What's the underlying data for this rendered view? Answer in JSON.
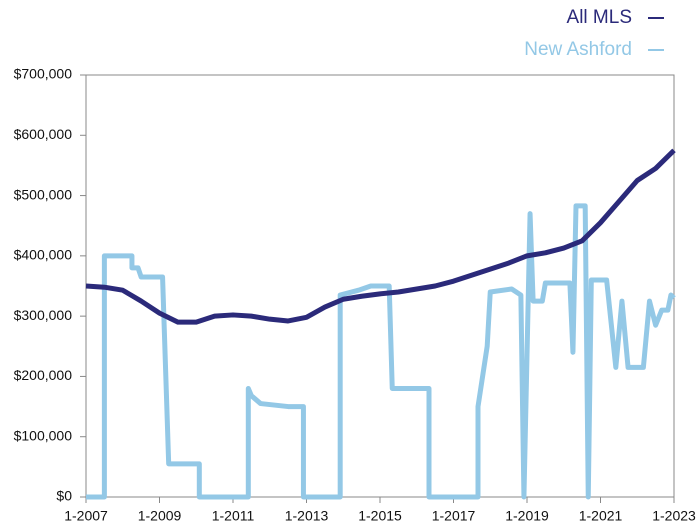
{
  "chart_data": {
    "type": "line",
    "xticks": [
      "1-2007",
      "1-2009",
      "1-2011",
      "1-2013",
      "1-2015",
      "1-2017",
      "1-2019",
      "1-2021",
      "1-2023"
    ],
    "xlim": [
      "1-2007",
      "1-2023"
    ],
    "ylim": [
      0,
      700000
    ],
    "yticks": [
      {
        "value": 0,
        "label": "$0"
      },
      {
        "value": 100000,
        "label": "$100,000"
      },
      {
        "value": 200000,
        "label": "$200,000"
      },
      {
        "value": 300000,
        "label": "$300,000"
      },
      {
        "value": 400000,
        "label": "$400,000"
      },
      {
        "value": 500000,
        "label": "$500,000"
      },
      {
        "value": 600000,
        "label": "$600,000"
      },
      {
        "value": 700000,
        "label": "$700,000"
      }
    ],
    "series": [
      {
        "name": "All MLS",
        "color": "#2b2a7a",
        "x": [
          "1-2007",
          "7-2007",
          "1-2008",
          "7-2008",
          "1-2009",
          "7-2009",
          "1-2010",
          "7-2010",
          "1-2011",
          "7-2011",
          "1-2012",
          "7-2012",
          "1-2013",
          "7-2013",
          "1-2014",
          "7-2014",
          "1-2015",
          "7-2015",
          "1-2016",
          "7-2016",
          "1-2017",
          "7-2017",
          "1-2018",
          "7-2018",
          "1-2019",
          "7-2019",
          "1-2020",
          "7-2020",
          "1-2021",
          "7-2021",
          "1-2022",
          "7-2022",
          "1-2023"
        ],
        "values": [
          350000,
          348000,
          343000,
          325000,
          305000,
          290000,
          290000,
          300000,
          302000,
          300000,
          295000,
          292000,
          298000,
          315000,
          328000,
          333000,
          337000,
          340000,
          345000,
          350000,
          358000,
          368000,
          378000,
          388000,
          400000,
          405000,
          413000,
          425000,
          455000,
          490000,
          525000,
          545000,
          575000
        ]
      },
      {
        "name": "New Ashford",
        "color": "#93c8e6",
        "x": [
          "1-2007",
          "7-2007",
          "7-2007",
          "4-2008",
          "4-2008",
          "6-2008",
          "7-2008",
          "2-2009",
          "3-2009",
          "4-2009",
          "2-2010",
          "2-2010",
          "6-2011",
          "6-2011",
          "7-2011",
          "10-2011",
          "7-2012",
          "12-2012",
          "12-2012",
          "12-2013",
          "12-2013",
          "6-2014",
          "10-2014",
          "4-2015",
          "5-2015",
          "5-2016",
          "5-2016",
          "9-2017",
          "9-2017",
          "12-2017",
          "1-2018",
          "8-2018",
          "11-2018",
          "12-2018",
          "2-2019",
          "3-2019",
          "6-2019",
          "7-2019",
          "3-2020",
          "4-2020",
          "5-2020",
          "8-2020",
          "9-2020",
          "10-2020",
          "3-2021",
          "6-2021",
          "8-2021",
          "10-2021",
          "3-2022",
          "5-2022",
          "7-2022",
          "9-2022",
          "11-2022",
          "12-2022",
          "1-2023"
        ],
        "values": [
          0,
          0,
          400000,
          400000,
          380000,
          380000,
          365000,
          365000,
          210000,
          55000,
          55000,
          0,
          0,
          180000,
          168000,
          155000,
          150000,
          150000,
          0,
          0,
          335000,
          343000,
          350000,
          350000,
          180000,
          180000,
          0,
          0,
          150000,
          250000,
          340000,
          345000,
          335000,
          0,
          470000,
          325000,
          325000,
          355000,
          355000,
          240000,
          483000,
          483000,
          0,
          360000,
          360000,
          215000,
          325000,
          215000,
          215000,
          325000,
          285000,
          310000,
          310000,
          335000,
          330000
        ]
      }
    ]
  }
}
